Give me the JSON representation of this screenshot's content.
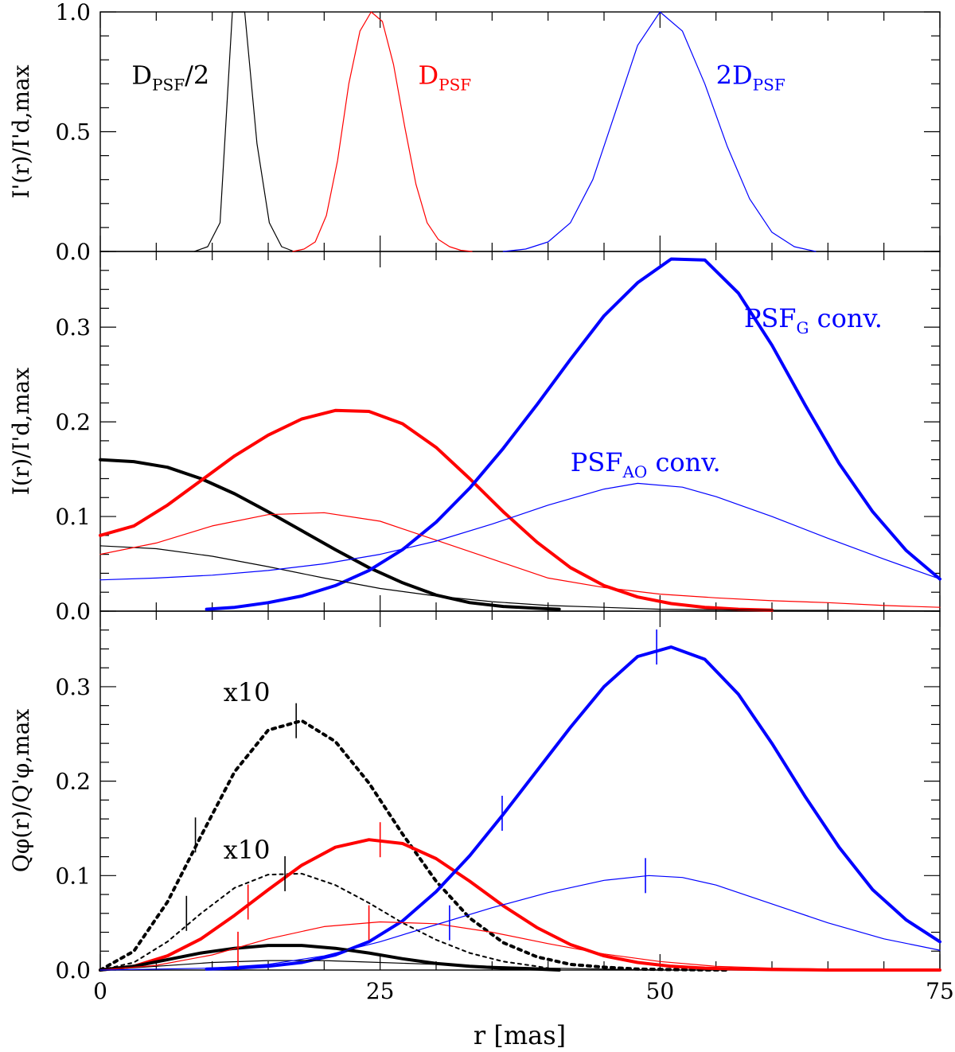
{
  "chart_data": {
    "type": "line",
    "xlabel": "r [mas]",
    "xlim": [
      0,
      75
    ],
    "x_ticks": [
      0,
      25,
      50,
      75
    ],
    "x_tick_labels": [
      "0",
      "25",
      "50",
      "75"
    ],
    "panels": [
      {
        "id": "top",
        "ylabel": "I'(r)/I'd,max",
        "ylim": [
          0,
          1.0
        ],
        "y_ticks": [
          0,
          0.5,
          1.0
        ],
        "y_tick_labels": [
          "0.0",
          "0.5",
          "1.0"
        ],
        "series": [
          {
            "id": "top-black",
            "name": "DPSF/2",
            "color": "#000000",
            "width": 1.2,
            "dash": "",
            "x": [
              8.4,
              9.6,
              10.7,
              11.8,
              12.9,
              14.0,
              15.1,
              16.2,
              17.3
            ],
            "y": [
              0.0,
              0.02,
              0.12,
              1.0,
              1.0,
              0.45,
              0.12,
              0.02,
              0.0
            ]
          },
          {
            "id": "top-red",
            "name": "DPSF",
            "color": "#ff0000",
            "width": 1.2,
            "dash": "",
            "x": [
              17.2,
              18.2,
              19.2,
              20.2,
              21.2,
              22.2,
              23.2,
              24.2,
              25.2,
              26.2,
              27.2,
              28.2,
              29.2,
              30.2,
              31.2,
              32.2,
              33.2
            ],
            "y": [
              0.0,
              0.01,
              0.04,
              0.15,
              0.38,
              0.7,
              0.92,
              1.0,
              0.96,
              0.78,
              0.52,
              0.28,
              0.12,
              0.05,
              0.02,
              0.005,
              0.0
            ]
          },
          {
            "id": "top-blue",
            "name": "2DPSF",
            "color": "#0000ff",
            "width": 1.2,
            "dash": "",
            "x": [
              36.0,
              38.0,
              40.0,
              42.0,
              44.0,
              46.0,
              48.0,
              50.0,
              52.0,
              54.0,
              56.0,
              58.0,
              60.0,
              62.0,
              63.9
            ],
            "y": [
              0.0,
              0.01,
              0.04,
              0.12,
              0.3,
              0.58,
              0.86,
              1.0,
              0.92,
              0.7,
              0.44,
              0.22,
              0.08,
              0.02,
              0.0
            ]
          }
        ],
        "annotations": [
          {
            "id": "label-dpsf-half",
            "main": "D",
            "sub": "PSF",
            "suffix": "/2",
            "x": 2.8,
            "y": 0.7,
            "color": "#000000"
          },
          {
            "id": "label-dpsf",
            "main": "D",
            "sub": "PSF",
            "suffix": "",
            "x": 28.4,
            "y": 0.7,
            "color": "#ff0000"
          },
          {
            "id": "label-2dpsf",
            "main": "2D",
            "sub": "PSF",
            "suffix": "",
            "x": 55.0,
            "y": 0.7,
            "color": "#0000ff"
          }
        ]
      },
      {
        "id": "middle",
        "ylabel": "I(r)/I'd,max",
        "ylim": [
          0,
          0.38
        ],
        "y_ticks": [
          0,
          0.1,
          0.2,
          0.3
        ],
        "y_tick_labels": [
          "0.0",
          "0.1",
          "0.2",
          "0.3"
        ],
        "series": [
          {
            "id": "mid-black-thick",
            "color": "#000000",
            "width": 4,
            "dash": "",
            "x": [
              0,
              3,
              6,
              9,
              12,
              15,
              18,
              21,
              24,
              27,
              30,
              33,
              36,
              39,
              41
            ],
            "y": [
              0.16,
              0.158,
              0.152,
              0.14,
              0.124,
              0.105,
              0.085,
              0.065,
              0.046,
              0.03,
              0.017,
              0.009,
              0.005,
              0.003,
              0.002
            ]
          },
          {
            "id": "mid-red-thick",
            "color": "#ff0000",
            "width": 4,
            "dash": "",
            "x": [
              0,
              3,
              6,
              9,
              12,
              15,
              18,
              21,
              24,
              27,
              30,
              33,
              36,
              39,
              42,
              45,
              48,
              51,
              54,
              57,
              60
            ],
            "y": [
              0.08,
              0.09,
              0.112,
              0.138,
              0.164,
              0.186,
              0.203,
              0.212,
              0.211,
              0.198,
              0.173,
              0.14,
              0.105,
              0.073,
              0.046,
              0.027,
              0.015,
              0.008,
              0.004,
              0.002,
              0.001
            ]
          },
          {
            "id": "mid-blue-thick",
            "color": "#0000ff",
            "width": 4,
            "dash": "",
            "x": [
              9.5,
              12,
              15,
              18,
              21,
              24,
              27,
              30,
              33,
              36,
              39,
              42,
              45,
              48,
              51,
              54,
              57,
              60,
              63,
              66,
              69,
              72,
              75
            ],
            "y": [
              0.002,
              0.004,
              0.009,
              0.016,
              0.027,
              0.043,
              0.065,
              0.094,
              0.13,
              0.172,
              0.218,
              0.266,
              0.312,
              0.347,
              0.372,
              0.371,
              0.336,
              0.281,
              0.217,
              0.156,
              0.105,
              0.064,
              0.034
            ]
          },
          {
            "id": "mid-black-thin",
            "color": "#000000",
            "width": 1.2,
            "dash": "",
            "x": [
              0,
              5,
              10,
              15,
              20,
              25,
              30,
              35,
              40,
              45,
              50,
              55,
              60,
              65,
              70,
              75
            ],
            "y": [
              0.069,
              0.066,
              0.058,
              0.047,
              0.035,
              0.024,
              0.016,
              0.01,
              0.006,
              0.004,
              0.002,
              0.0015,
              0.001,
              0.0008,
              0.0005,
              0.0003
            ]
          },
          {
            "id": "mid-red-thin",
            "color": "#ff0000",
            "width": 1.2,
            "dash": "",
            "x": [
              0,
              5,
              10,
              15,
              20,
              25,
              30,
              35,
              40,
              45,
              50,
              55,
              60,
              65,
              70,
              75
            ],
            "y": [
              0.06,
              0.072,
              0.09,
              0.102,
              0.104,
              0.095,
              0.075,
              0.055,
              0.035,
              0.025,
              0.018,
              0.014,
              0.011,
              0.009,
              0.006,
              0.004
            ]
          },
          {
            "id": "mid-blue-thin",
            "color": "#0000ff",
            "width": 1.2,
            "dash": "",
            "x": [
              0,
              5,
              10,
              15,
              20,
              25,
              30,
              35,
              40,
              45,
              48,
              52,
              55,
              60,
              65,
              70,
              75
            ],
            "y": [
              0.033,
              0.035,
              0.038,
              0.043,
              0.05,
              0.06,
              0.074,
              0.092,
              0.112,
              0.129,
              0.135,
              0.131,
              0.121,
              0.1,
              0.077,
              0.055,
              0.034
            ]
          }
        ],
        "annotations": [
          {
            "id": "label-psfg",
            "main": "PSF",
            "sub": "G",
            "suffix": " conv.",
            "x": 57.5,
            "y": 0.3,
            "color": "#0000ff"
          },
          {
            "id": "label-psfao",
            "main": "PSF",
            "sub": "AO",
            "suffix": " conv.",
            "x": 42.0,
            "y": 0.148,
            "color": "#0000ff"
          }
        ]
      },
      {
        "id": "bottom",
        "ylabel": "Qφ(r)/Q'φ,max",
        "ylim": [
          0,
          0.38
        ],
        "y_ticks": [
          0,
          0.1,
          0.2,
          0.3
        ],
        "y_tick_labels": [
          "0.0",
          "0.1",
          "0.2",
          "0.3"
        ],
        "series": [
          {
            "id": "bot-black-dot-thick",
            "color": "#000000",
            "width": 4,
            "dash": "4 6",
            "x": [
              0,
              3,
              6,
              9,
              12,
              15,
              18,
              21,
              24,
              27,
              30,
              33,
              36,
              39,
              42,
              45,
              48,
              51,
              54,
              56
            ],
            "y": [
              0.0,
              0.02,
              0.072,
              0.142,
              0.21,
              0.254,
              0.264,
              0.242,
              0.198,
              0.144,
              0.094,
              0.055,
              0.029,
              0.014,
              0.006,
              0.003,
              0.001,
              0.0005,
              0.0002,
              0.0
            ]
          },
          {
            "id": "bot-black-dot-thin",
            "color": "#000000",
            "width": 2,
            "dash": "4 5",
            "x": [
              0,
              3,
              6,
              9,
              12,
              15,
              18,
              21,
              24,
              27,
              30,
              33,
              36,
              39,
              41
            ],
            "y": [
              0.0,
              0.008,
              0.03,
              0.06,
              0.087,
              0.101,
              0.102,
              0.09,
              0.071,
              0.05,
              0.032,
              0.018,
              0.009,
              0.004,
              0.0
            ]
          },
          {
            "id": "bot-red-thick",
            "color": "#ff0000",
            "width": 4,
            "dash": "",
            "x": [
              0,
              3,
              6,
              9,
              12,
              15,
              18,
              21,
              24,
              27,
              30,
              33,
              36,
              39,
              42,
              45,
              48,
              51,
              54,
              57,
              60,
              65,
              75
            ],
            "y": [
              0.0,
              0.004,
              0.015,
              0.033,
              0.058,
              0.085,
              0.111,
              0.13,
              0.138,
              0.134,
              0.118,
              0.094,
              0.068,
              0.045,
              0.027,
              0.015,
              0.008,
              0.004,
              0.002,
              0.001,
              0.0005,
              0.0,
              0.0
            ]
          },
          {
            "id": "bot-blue-thick",
            "color": "#0000ff",
            "width": 4,
            "dash": "",
            "x": [
              9.5,
              12,
              15,
              18,
              21,
              24,
              27,
              30,
              33,
              36,
              39,
              42,
              45,
              48,
              51,
              54,
              57,
              60,
              63,
              66,
              69,
              72,
              75
            ],
            "y": [
              0.001,
              0.002,
              0.004,
              0.008,
              0.016,
              0.03,
              0.052,
              0.083,
              0.121,
              0.165,
              0.211,
              0.257,
              0.3,
              0.332,
              0.342,
              0.329,
              0.292,
              0.24,
              0.183,
              0.13,
              0.085,
              0.053,
              0.03
            ]
          },
          {
            "id": "bot-black-thick",
            "color": "#000000",
            "width": 4,
            "dash": "",
            "x": [
              0,
              3,
              6,
              9,
              12,
              15,
              18,
              21,
              24,
              27,
              30,
              33,
              36,
              39,
              41
            ],
            "y": [
              0.0,
              0.004,
              0.011,
              0.018,
              0.023,
              0.026,
              0.026,
              0.023,
              0.018,
              0.012,
              0.007,
              0.004,
              0.002,
              0.001,
              0.0
            ]
          },
          {
            "id": "bot-black-thin",
            "color": "#000000",
            "width": 1.2,
            "dash": "",
            "x": [
              0,
              5,
              10,
              15,
              20,
              25,
              30,
              35,
              40,
              45,
              50
            ],
            "y": [
              0.0,
              0.004,
              0.008,
              0.01,
              0.01,
              0.008,
              0.006,
              0.004,
              0.002,
              0.001,
              0.0
            ]
          },
          {
            "id": "bot-red-thin",
            "color": "#ff0000",
            "width": 1.2,
            "dash": "",
            "x": [
              0,
              5,
              10,
              15,
              20,
              25,
              30,
              35,
              40,
              45,
              50,
              55,
              60,
              65,
              70,
              75
            ],
            "y": [
              0.0,
              0.005,
              0.016,
              0.033,
              0.046,
              0.051,
              0.049,
              0.04,
              0.028,
              0.017,
              0.009,
              0.004,
              0.002,
              0.001,
              0.0005,
              0.0
            ]
          },
          {
            "id": "bot-blue-thin",
            "color": "#0000ff",
            "width": 1.2,
            "dash": "",
            "x": [
              0,
              5,
              10,
              15,
              20,
              25,
              30,
              35,
              40,
              45,
              49,
              52,
              55,
              60,
              65,
              70,
              75
            ],
            "y": [
              0.0,
              0.001,
              0.002,
              0.006,
              0.015,
              0.03,
              0.048,
              0.066,
              0.082,
              0.095,
              0.1,
              0.098,
              0.09,
              0.07,
              0.05,
              0.033,
              0.021
            ]
          }
        ],
        "markers": [
          {
            "x": 17.5,
            "y": 0.264,
            "color": "#000000"
          },
          {
            "x": 8.5,
            "y": 0.143,
            "color": "#000000"
          },
          {
            "x": 16.5,
            "y": 0.102,
            "color": "#000000"
          },
          {
            "x": 7.7,
            "y": 0.06,
            "color": "#000000"
          },
          {
            "x": 25.0,
            "y": 0.138,
            "color": "#ff0000"
          },
          {
            "x": 13.2,
            "y": 0.072,
            "color": "#ff0000"
          },
          {
            "x": 24.0,
            "y": 0.05,
            "color": "#ff0000"
          },
          {
            "x": 12.3,
            "y": 0.022,
            "color": "#ff0000"
          },
          {
            "x": 49.7,
            "y": 0.342,
            "color": "#0000ff"
          },
          {
            "x": 35.9,
            "y": 0.166,
            "color": "#0000ff"
          },
          {
            "x": 48.7,
            "y": 0.1,
            "color": "#0000ff"
          },
          {
            "x": 31.2,
            "y": 0.05,
            "color": "#0000ff"
          }
        ],
        "annotations": [
          {
            "id": "label-x10-upper",
            "main": "x10",
            "sub": "",
            "suffix": "",
            "x": 11.0,
            "y": 0.285,
            "color": "#000000"
          },
          {
            "id": "label-x10-lower",
            "main": "x10",
            "sub": "",
            "suffix": "",
            "x": 11.0,
            "y": 0.118,
            "color": "#000000"
          }
        ]
      }
    ]
  }
}
